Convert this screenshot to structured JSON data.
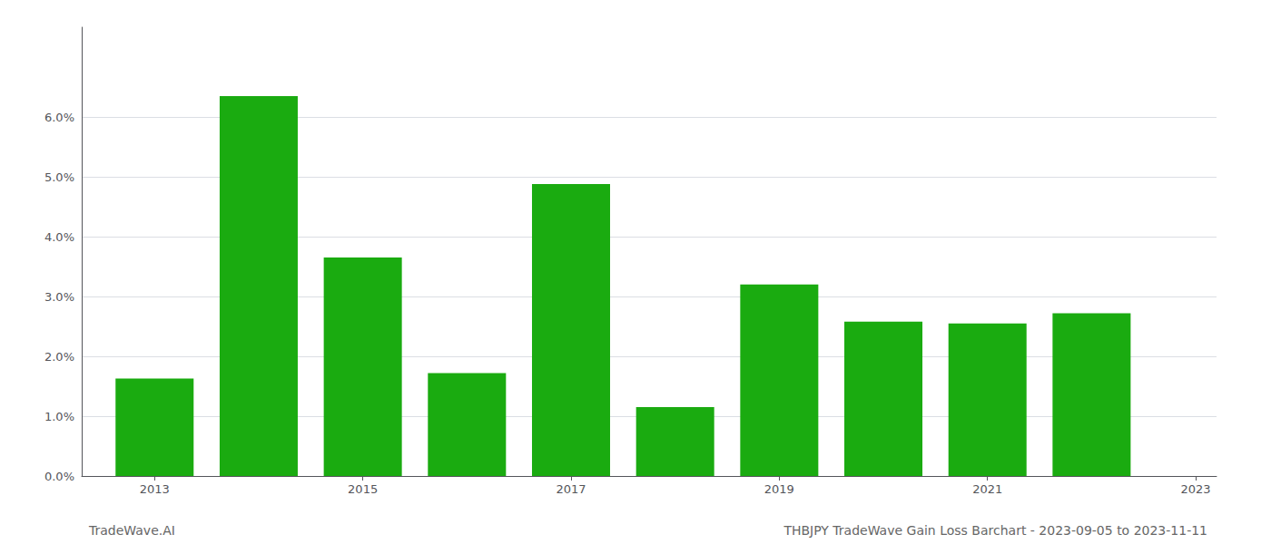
{
  "chart_data": {
    "type": "bar",
    "x": [
      2013,
      2014,
      2015,
      2016,
      2017,
      2018,
      2019,
      2020,
      2021,
      2022
    ],
    "values": [
      0.0163,
      0.0635,
      0.0365,
      0.0172,
      0.0488,
      0.0115,
      0.032,
      0.0258,
      0.0255,
      0.0272
    ],
    "color": "#1aab10",
    "xlim": [
      2012.3,
      2023.2
    ],
    "xticks": [
      2013,
      2015,
      2017,
      2019,
      2021,
      2023
    ],
    "ylim": [
      0,
      0.075
    ],
    "yticks": [
      {
        "value": 0.0,
        "label": "0.0%"
      },
      {
        "value": 0.01,
        "label": "1.0%"
      },
      {
        "value": 0.02,
        "label": "2.0%"
      },
      {
        "value": 0.03,
        "label": "3.0%"
      },
      {
        "value": 0.04,
        "label": "4.0%"
      },
      {
        "value": 0.05,
        "label": "5.0%"
      },
      {
        "value": 0.06,
        "label": "6.0%"
      }
    ],
    "grid": true,
    "annotations": [
      "TradeWave.AI",
      "THBJPY TradeWave Gain Loss Barchart - 2023-09-05 to 2023-11-11"
    ]
  }
}
